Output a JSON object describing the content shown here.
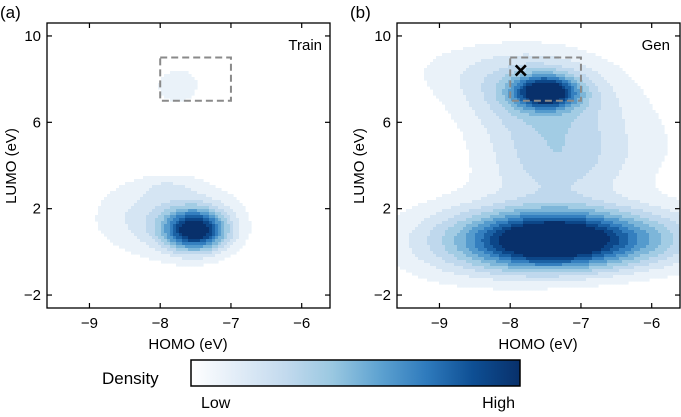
{
  "chart_data": [
    {
      "type": "heatmap",
      "subtype": "2d-density-contour",
      "panel_label": "(a)",
      "title": "Train",
      "xlabel": "HOMO (eV)",
      "ylabel": "LUMO (eV)",
      "xlim": [
        -9.6,
        -5.6
      ],
      "ylim": [
        -2.6,
        10.6
      ],
      "xticks": [
        -9,
        -8,
        -7,
        -6
      ],
      "yticks": [
        -2,
        2,
        6,
        10
      ],
      "xtick_labels": [
        "−9",
        "−8",
        "−7",
        "−6"
      ],
      "ytick_labels": [
        "−2",
        "2",
        "6",
        "10"
      ],
      "levels": 10,
      "peak_weight": 1.0,
      "components": [
        {
          "x": -7.5,
          "y": 1.0,
          "sx": 0.3,
          "sy": 0.65,
          "w": 1.0
        },
        {
          "x": -7.9,
          "y": 1.6,
          "sx": 0.7,
          "sy": 1.3,
          "w": 0.28
        },
        {
          "x": -7.75,
          "y": 7.7,
          "sx": 0.32,
          "sy": 0.85,
          "w": 0.14
        },
        {
          "x": -7.9,
          "y": 3.0,
          "sx": 0.25,
          "sy": 0.3,
          "w": 0.08
        }
      ],
      "box": {
        "x": [
          -8.0,
          -7.0
        ],
        "y": [
          7.0,
          9.0
        ]
      }
    },
    {
      "type": "heatmap",
      "subtype": "2d-density-contour",
      "panel_label": "(b)",
      "title": "Gen",
      "xlabel": "HOMO (eV)",
      "ylabel": "LUMO (eV)",
      "xlim": [
        -9.6,
        -5.6
      ],
      "ylim": [
        -2.6,
        10.6
      ],
      "xticks": [
        -9,
        -8,
        -7,
        -6
      ],
      "yticks": [
        -2,
        2,
        6,
        10
      ],
      "xtick_labels": [
        "−9",
        "−8",
        "−7",
        "−6"
      ],
      "ytick_labels": [
        "−2",
        "2",
        "6",
        "10"
      ],
      "levels": 10,
      "peak_weight": 1.0,
      "components": [
        {
          "x": -7.5,
          "y": 0.5,
          "sx": 0.7,
          "sy": 0.9,
          "w": 1.0
        },
        {
          "x": -6.5,
          "y": 0.6,
          "sx": 0.9,
          "sy": 1.0,
          "w": 0.55
        },
        {
          "x": -8.6,
          "y": 0.5,
          "sx": 0.8,
          "sy": 1.3,
          "w": 0.3
        },
        {
          "x": -7.5,
          "y": 7.4,
          "sx": 0.3,
          "sy": 0.5,
          "w": 0.9
        },
        {
          "x": -7.6,
          "y": 7.3,
          "sx": 0.75,
          "sy": 1.3,
          "w": 0.38
        },
        {
          "x": -7.4,
          "y": 4.2,
          "sx": 0.7,
          "sy": 1.5,
          "w": 0.3
        },
        {
          "x": -8.5,
          "y": 8.5,
          "sx": 0.9,
          "sy": 1.0,
          "w": 0.1
        },
        {
          "x": -6.5,
          "y": 5.0,
          "sx": 1.0,
          "sy": 1.8,
          "w": 0.1
        }
      ],
      "box": {
        "x": [
          -8.0,
          -7.0
        ],
        "y": [
          7.0,
          9.0
        ]
      },
      "marker": {
        "symbol": "×",
        "x": -7.85,
        "y": 8.4,
        "color": "#f08a24"
      }
    }
  ],
  "colorbar": {
    "label": "Density",
    "low_label": "Low",
    "high_label": "High",
    "colors": [
      "#ffffff",
      "#e1ecf7",
      "#c3daee",
      "#9ac8e1",
      "#5fa3d1",
      "#2f7bbd",
      "#0e4f94",
      "#08306b"
    ]
  },
  "colors": {
    "box_stroke": "#8a8a8a",
    "axis": "#000000"
  }
}
